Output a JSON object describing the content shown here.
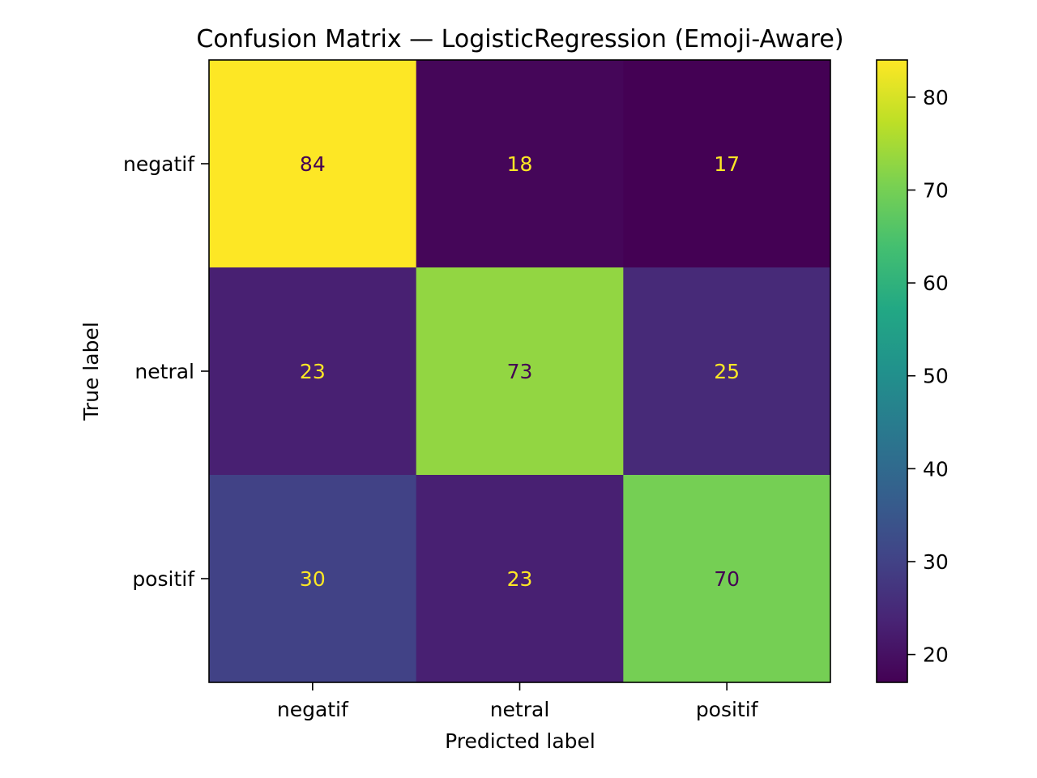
{
  "chart_data": {
    "type": "heatmap",
    "title": "Confusion Matrix — LogisticRegression (Emoji-Aware)",
    "xlabel": "Predicted label",
    "ylabel": "True label",
    "x_categories": [
      "negatif",
      "netral",
      "positif"
    ],
    "y_categories": [
      "negatif",
      "netral",
      "positif"
    ],
    "matrix": [
      [
        84,
        18,
        17
      ],
      [
        23,
        73,
        25
      ],
      [
        30,
        23,
        70
      ]
    ],
    "colormap": "viridis",
    "color_range": [
      17,
      84
    ],
    "colorbar_ticks": [
      20,
      30,
      40,
      50,
      60,
      70,
      80
    ],
    "colorbar_tick_labels": [
      "20",
      "30",
      "40",
      "50",
      "60",
      "70",
      "80"
    ],
    "text_color_light": "#fde725",
    "text_color_dark": "#440154",
    "grid": false
  }
}
